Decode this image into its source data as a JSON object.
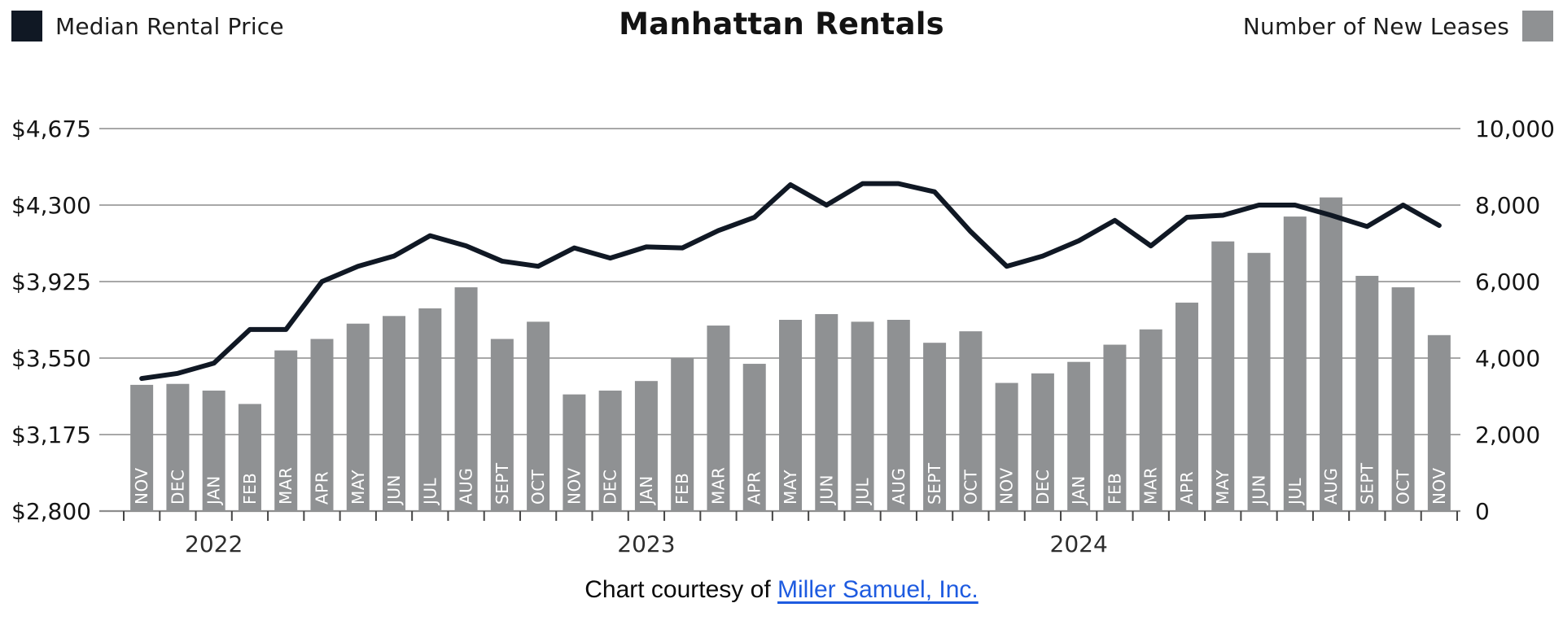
{
  "header": {
    "title": "Manhattan Rentals",
    "legend_left": {
      "label": "Median Rental Price",
      "color": "#101824"
    },
    "legend_right": {
      "label": "Number of New Leases",
      "color": "#8f9193"
    }
  },
  "chart_data": {
    "type": "bar",
    "title": "Manhattan Rentals",
    "categories": [
      "NOV",
      "DEC",
      "JAN",
      "FEB",
      "MAR",
      "APR",
      "MAY",
      "JUN",
      "JUL",
      "AUG",
      "SEPT",
      "OCT",
      "NOV",
      "DEC",
      "JAN",
      "FEB",
      "MAR",
      "APR",
      "MAY",
      "JUN",
      "JUL",
      "AUG",
      "SEPT",
      "OCT",
      "NOV",
      "DEC",
      "JAN",
      "FEB",
      "MAR",
      "APR",
      "MAY",
      "JUN",
      "JUL",
      "AUG",
      "SEPT",
      "OCT",
      "NOV"
    ],
    "years": [
      {
        "label": "2022",
        "month_index": 2
      },
      {
        "label": "2023",
        "month_index": 14
      },
      {
        "label": "2024",
        "month_index": 26
      }
    ],
    "series": [
      {
        "name": "Median Rental Price",
        "type": "line",
        "axis": "left",
        "color": "#101824",
        "values": [
          3450,
          3475,
          3525,
          3690,
          3690,
          3925,
          4000,
          4050,
          4150,
          4100,
          4025,
          4000,
          4090,
          4040,
          4095,
          4090,
          4175,
          4240,
          4400,
          4300,
          4405,
          4405,
          4365,
          4170,
          4000,
          4050,
          4125,
          4225,
          4100,
          4240,
          4250,
          4300,
          4300,
          4250,
          4195,
          4300,
          4200
        ]
      },
      {
        "name": "Number of New Leases",
        "type": "bar",
        "axis": "right",
        "color": "#8f9193",
        "values": [
          3300,
          3325,
          3150,
          2800,
          4200,
          4500,
          4900,
          5100,
          5300,
          5850,
          4500,
          4950,
          3050,
          3150,
          3400,
          4000,
          4850,
          3850,
          5000,
          5150,
          4950,
          5000,
          4400,
          4700,
          3350,
          3600,
          3900,
          4350,
          4750,
          5450,
          7050,
          6750,
          7700,
          8200,
          6150,
          5850,
          4600
        ]
      }
    ],
    "left_axis": {
      "min": 2800,
      "max": 4675,
      "ticks_bottom_to_top": [
        "$2,800",
        "$3,175",
        "$3,550",
        "$3,925",
        "$4,300",
        "$4,675"
      ]
    },
    "right_axis": {
      "min": 0,
      "max": 10000,
      "ticks_bottom_to_top": [
        "0",
        "2,000",
        "4,000",
        "6,000",
        "8,000",
        "10,000"
      ]
    },
    "grid": true,
    "legend_position": "top"
  },
  "footer": {
    "caption_prefix": "Chart courtesy of ",
    "link_text": "Miller Samuel, Inc.",
    "link_color": "#1e5be0"
  }
}
